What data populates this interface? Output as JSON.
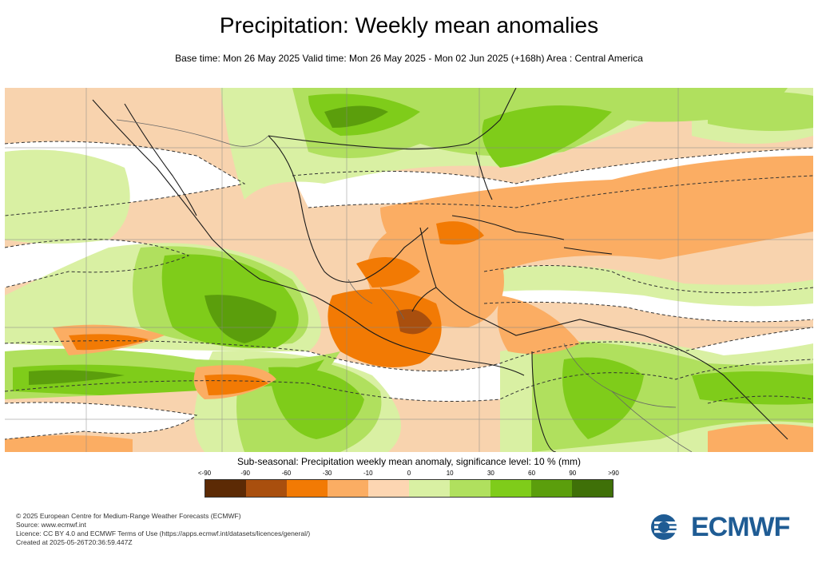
{
  "header": {
    "title": "Precipitation: Weekly mean anomalies",
    "subtitle": "Base time: Mon 26 May 2025 Valid time: Mon 26 May 2025 - Mon 02 Jun 2025 (+168h) Area : Central America"
  },
  "map": {
    "area": "Central America",
    "background_color": "#f8d3ae",
    "land_outline_color": "#222222",
    "border_color": "#777777",
    "significance_contour": "dashed"
  },
  "legend": {
    "title": "Sub-seasonal: Precipitation weekly mean anomaly, significance level: 10 % (mm)",
    "labels": [
      "<-90",
      "-90",
      "-60",
      "-30",
      "-10",
      "0",
      "10",
      "30",
      "60",
      "90",
      ">90"
    ],
    "colors": [
      "#5c2a05",
      "#a94f0e",
      "#f27a04",
      "#fbad63",
      "#fdd6b2",
      "#d9f0a3",
      "#b0e05e",
      "#7fcc1a",
      "#5b9e0c",
      "#3f7008"
    ]
  },
  "footer": {
    "lines": [
      "© 2025 European Centre for Medium-Range Weather Forecasts (ECMWF)",
      "Source: www.ecmwf.int",
      "Licence: CC BY 4.0 and ECMWF Terms of Use (https://apps.ecmwf.int/datasets/licences/general/)",
      "Created at 2025-05-26T20:36:59.447Z"
    ]
  },
  "logo": {
    "text": "ECMWF",
    "color": "#1f5c94"
  }
}
